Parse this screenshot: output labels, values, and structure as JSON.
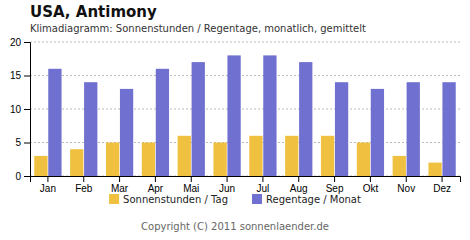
{
  "chart_data": {
    "type": "bar",
    "title": "USA,  Antimony",
    "subtitle": "Klimadiagramm: Sonnenstunden / Regentage, monatlich, gemittelt",
    "categories": [
      "Jan",
      "Feb",
      "Mar",
      "Apr",
      "Mai",
      "Jun",
      "Jul",
      "Aug",
      "Sep",
      "Okt",
      "Nov",
      "Dez"
    ],
    "series": [
      {
        "name": "Sonnenstunden / Tag",
        "color": "#f0c040",
        "values": [
          3,
          4,
          5,
          5,
          6,
          5,
          6,
          6,
          6,
          5,
          3,
          2
        ]
      },
      {
        "name": "Regentage / Monat",
        "color": "#7070d0",
        "values": [
          16,
          14,
          13,
          16,
          17,
          18,
          18,
          17,
          14,
          13,
          14,
          14
        ]
      }
    ],
    "ylim": [
      0,
      20
    ],
    "yticks": [
      0,
      5,
      10,
      15,
      20
    ],
    "grid": true,
    "legend": "bottom",
    "annotations": [
      "Copyright (C) 2011 sonnenlaender.de"
    ]
  }
}
